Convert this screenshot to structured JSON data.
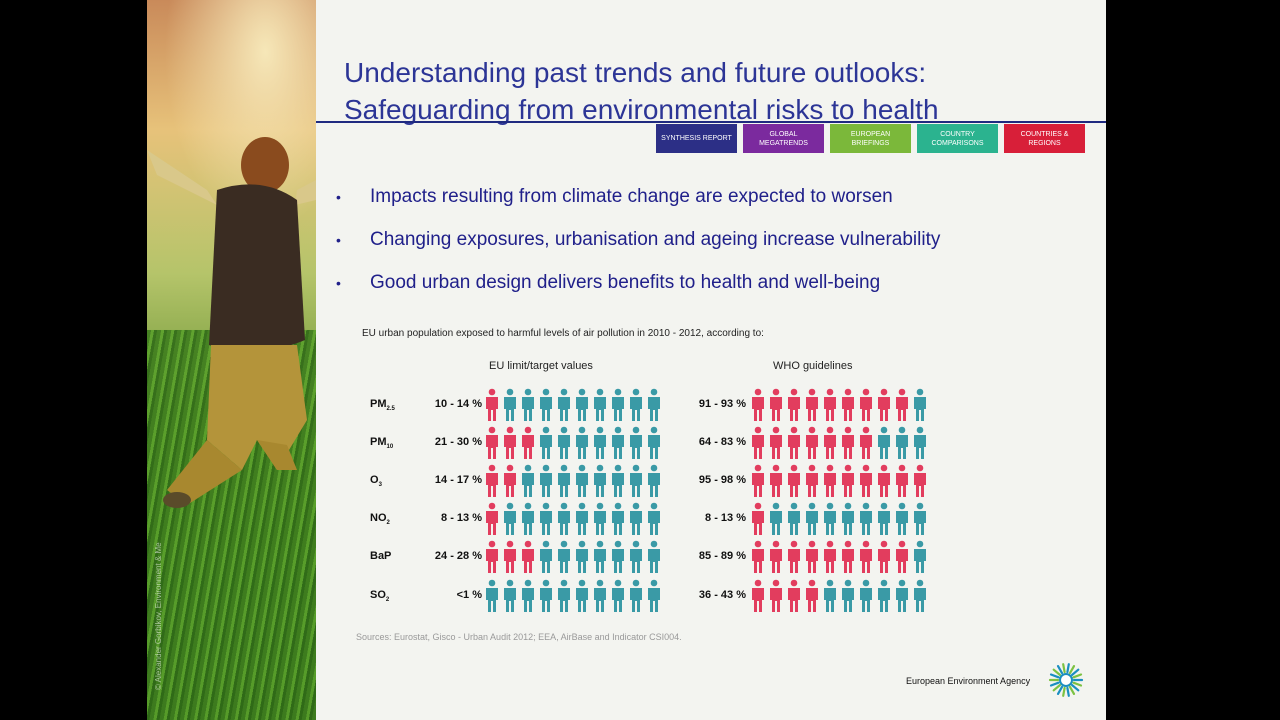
{
  "photo": {
    "credit": "© Alexander Gorbikov, Environment & Me"
  },
  "slide": {
    "title_line1": "Understanding past trends and future outlooks:",
    "title_line2": "Safeguarding from environmental risks to health",
    "tabs": [
      {
        "label": "Synthesis report",
        "color": "#2c2f86"
      },
      {
        "label": "Global megatrends",
        "color": "#7b2a9e"
      },
      {
        "label": "European briefings",
        "color": "#7bb83a"
      },
      {
        "label": "Country comparisons",
        "color": "#2bb38f"
      },
      {
        "label": "Countries & regions",
        "color": "#d81f39"
      }
    ],
    "bullets": [
      "Impacts resulting from climate change are expected to worsen",
      "Changing exposures, urbanisation and ageing increase vulnerability",
      "Good urban design delivers benefits to health and well-being"
    ]
  },
  "chart_data": {
    "type": "table",
    "title": "EU urban population exposed to harmful levels of air pollution in 2010 - 2012, according to:",
    "columns": [
      "EU limit/target values",
      "WHO guidelines"
    ],
    "colors": {
      "exposed": "#e23d5e",
      "not_exposed": "#3a9aa6"
    },
    "rows": [
      {
        "pollutant": "PM",
        "sub": "2.5",
        "eu": "10 - 14 %",
        "eu_icons": 1,
        "who": "91 - 93 %",
        "who_icons": 9
      },
      {
        "pollutant": "PM",
        "sub": "10",
        "eu": "21 - 30 %",
        "eu_icons": 3,
        "who": "64 - 83 %",
        "who_icons": 7
      },
      {
        "pollutant": "O",
        "sub": "3",
        "eu": "14 - 17 %",
        "eu_icons": 2,
        "who": "95 - 98 %",
        "who_icons": 10
      },
      {
        "pollutant": "NO",
        "sub": "2",
        "eu": "8 - 13 %",
        "eu_icons": 1,
        "who": "8 - 13 %",
        "who_icons": 1
      },
      {
        "pollutant": "BaP",
        "sub": "",
        "eu": "24 - 28 %",
        "eu_icons": 3,
        "who": "85 - 89 %",
        "who_icons": 9
      },
      {
        "pollutant": "SO",
        "sub": "2",
        "eu": "<1 %",
        "eu_icons": 0,
        "who": "36 - 43 %",
        "who_icons": 4
      }
    ],
    "icons_per_row": 10
  },
  "sources": "Sources: Eurostat, Gisco - Urban Audit 2012; EEA, AirBase and Indicator CSI004.",
  "footer": {
    "brand": "European Environment Agency"
  }
}
